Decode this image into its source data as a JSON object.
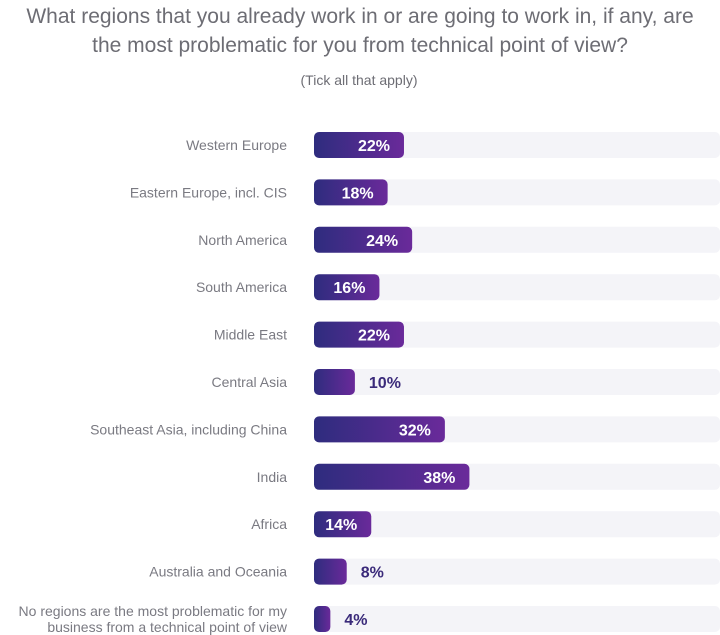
{
  "header": {
    "title_line1": "What regions that you already work in or are going to work in, if any, are",
    "title_line2": "the most problematic for you from technical point of view?",
    "subtitle": "(Tick all that apply)"
  },
  "colors": {
    "bar_start": "#2e2c7e",
    "bar_end": "#6a2a9a",
    "track": "#f4f4f8",
    "value_inside": "#ffffff",
    "value_outside": "#3a2a7a",
    "label": "#7a7a82"
  },
  "chart_data": {
    "type": "bar",
    "orientation": "horizontal",
    "title": "What regions that you already work in or are going to work in, if any, are the most problematic for you from technical point of view?",
    "subtitle": "(Tick all that apply)",
    "xlabel": "",
    "ylabel": "",
    "unit": "%",
    "xlim": [
      0,
      100
    ],
    "grid": false,
    "categories": [
      [
        "Western Europe"
      ],
      [
        "Eastern Europe, incl. CIS"
      ],
      [
        "North America"
      ],
      [
        "South America"
      ],
      [
        "Middle East"
      ],
      [
        "Central Asia"
      ],
      [
        "Southeast Asia, including China"
      ],
      [
        "India"
      ],
      [
        "Africa"
      ],
      [
        "Australia and Oceania"
      ],
      [
        "No regions are the most problematic for my",
        "business from a technical point of view"
      ]
    ],
    "values": [
      22,
      18,
      24,
      16,
      22,
      10,
      32,
      38,
      14,
      8,
      4
    ],
    "value_labels": [
      "22%",
      "18%",
      "24%",
      "16%",
      "22%",
      "10%",
      "32%",
      "38%",
      "14%",
      "8%",
      "4%"
    ]
  }
}
